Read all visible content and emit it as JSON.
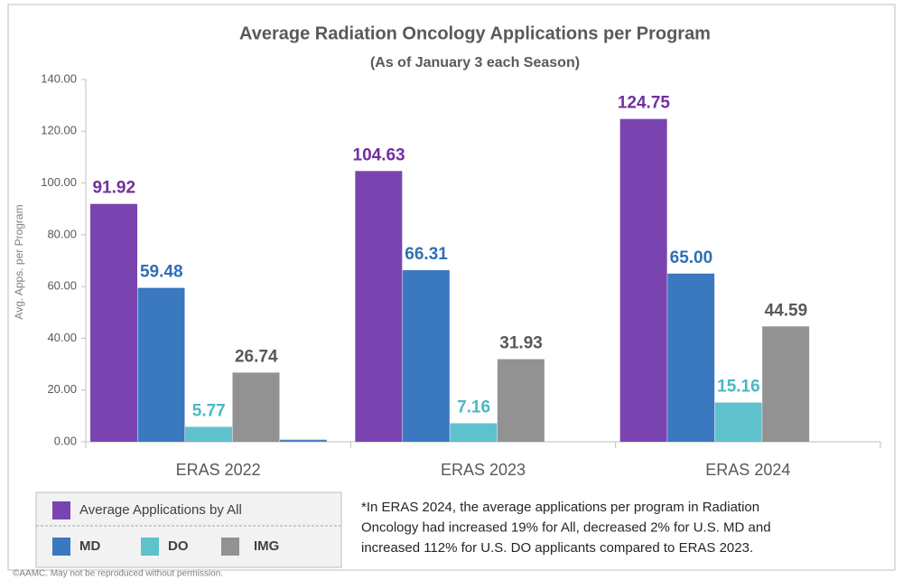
{
  "chart_data": {
    "type": "bar",
    "title": "Average Radiation Oncology Applications per Program",
    "subtitle": "(As of January 3 each Season)",
    "y_label": "Avg. Apps. per Program",
    "categories": [
      "ERAS 2022",
      "ERAS 2023",
      "ERAS 2024"
    ],
    "series": [
      {
        "name": "Average Applications by All",
        "color": "#7a44b0",
        "label_color": "#7030a0",
        "values": [
          91.92,
          104.63,
          124.75
        ],
        "value_labels": [
          "91.92",
          "104.63",
          "124.75"
        ]
      },
      {
        "name": "MD",
        "color": "#3a78c0",
        "label_color": "#2e6fb7",
        "values": [
          59.48,
          66.31,
          65.0
        ],
        "value_labels": [
          "59.48",
          "66.31",
          "65.00"
        ]
      },
      {
        "name": "DO",
        "color": "#5ec1cc",
        "label_color": "#4bb8c4",
        "values": [
          5.77,
          7.16,
          15.16
        ],
        "value_labels": [
          "5.77",
          "7.16",
          "15.16"
        ]
      },
      {
        "name": "IMG",
        "color": "#929292",
        "label_color": "#595959",
        "values": [
          26.74,
          31.93,
          44.59
        ],
        "value_labels": [
          "26.74",
          "31.93",
          "44.59"
        ]
      },
      {
        "color": "#4f80c4",
        "values": [
          0.8,
          null,
          null
        ]
      }
    ],
    "ylim": [
      0,
      140
    ],
    "yticks": [
      {
        "value": 0,
        "label": "0.00"
      },
      {
        "value": 20,
        "label": "20.00"
      },
      {
        "value": 40,
        "label": "40.00"
      },
      {
        "value": 60,
        "label": "60.00"
      },
      {
        "value": 80,
        "label": "80.00"
      },
      {
        "value": 100,
        "label": "100.00"
      },
      {
        "value": 120,
        "label": "120.00"
      },
      {
        "value": 140,
        "label": "140.00"
      }
    ],
    "grid": false,
    "footnote": [
      "*In ERAS 2024, the average applications per program in Radiation",
      "Oncology had increased 19% for All, decreased 2% for U.S. MD and",
      "increased 112% for U.S. DO applicants compared to ERAS 2023."
    ],
    "copyright": "©AAMC. May not be reproduced without permission."
  }
}
